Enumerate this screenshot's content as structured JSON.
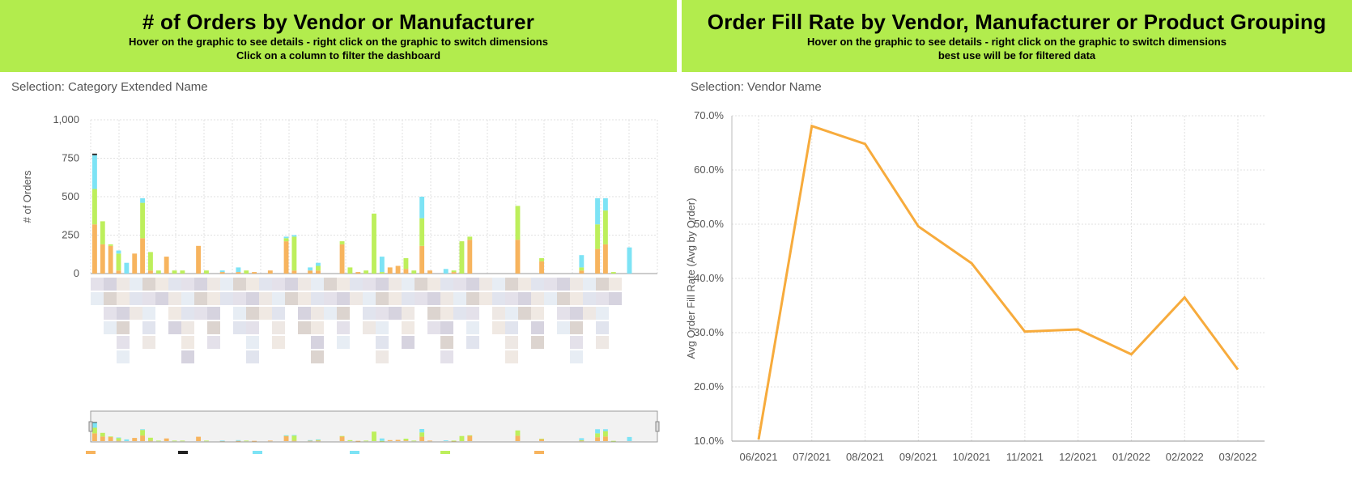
{
  "left_panel": {
    "title": "# of Orders by Vendor or Manufacturer",
    "subtitle1": "Hover on the graphic to see details - right click on the graphic to switch dimensions",
    "subtitle2": "Click on a column to filter the dashboard",
    "selection_text": "Selection: Category Extended Name"
  },
  "right_panel": {
    "title": "Order Fill Rate by Vendor, Manufacturer or Product Grouping",
    "subtitle1": "Hover on the graphic to see details - right click on the graphic to switch dimensions",
    "subtitle2": "best use will be for filtered data",
    "selection_text": "Selection: Vendor Name"
  },
  "colors": {
    "orange": "#f7b45e",
    "green": "#bdef5c",
    "cyan": "#7de3f5",
    "black": "#222222",
    "line": "#f7ab3c",
    "banner": "#b2ec4d"
  },
  "chart_data": [
    {
      "type": "bar",
      "stacked": true,
      "title": "# of Orders by Vendor or Manufacturer",
      "ylabel": "# of Orders",
      "ylim": [
        0,
        1000
      ],
      "yticks": [
        0,
        250,
        500,
        750,
        1000
      ],
      "ytick_labels": [
        "0",
        "250",
        "500",
        "750",
        "1,000"
      ],
      "series": [
        {
          "name": "Orange",
          "color": "#f7b45e",
          "values": [
            320,
            190,
            180,
            20,
            0,
            130,
            230,
            20,
            0,
            110,
            0,
            0,
            0,
            180,
            0,
            0,
            10,
            0,
            10,
            0,
            10,
            0,
            20,
            0,
            210,
            20,
            0,
            20,
            20,
            0,
            0,
            190,
            0,
            10,
            0,
            0,
            0,
            40,
            50,
            30,
            0,
            180,
            20,
            0,
            0,
            10,
            0,
            220,
            0,
            0,
            0,
            0,
            0,
            220,
            0,
            0,
            80,
            0,
            0,
            0,
            0,
            20,
            0,
            160,
            190,
            0,
            0,
            0,
            0,
            0,
            0
          ]
        },
        {
          "name": "Green",
          "color": "#bdef5c",
          "values": [
            230,
            150,
            10,
            110,
            0,
            0,
            230,
            120,
            20,
            0,
            20,
            20,
            0,
            0,
            20,
            0,
            0,
            0,
            0,
            20,
            0,
            0,
            0,
            0,
            20,
            220,
            0,
            0,
            30,
            0,
            0,
            20,
            40,
            0,
            20,
            390,
            10,
            0,
            0,
            70,
            20,
            180,
            0,
            0,
            0,
            10,
            210,
            20,
            0,
            0,
            0,
            0,
            0,
            220,
            0,
            0,
            20,
            0,
            0,
            0,
            0,
            20,
            0,
            160,
            220,
            10,
            0,
            0,
            0,
            0,
            0
          ]
        },
        {
          "name": "Cyan",
          "color": "#7de3f5",
          "values": [
            220,
            0,
            0,
            20,
            70,
            0,
            30,
            0,
            0,
            0,
            0,
            0,
            0,
            0,
            0,
            0,
            10,
            0,
            30,
            0,
            0,
            0,
            0,
            0,
            10,
            10,
            0,
            20,
            20,
            0,
            0,
            0,
            0,
            0,
            0,
            0,
            100,
            0,
            0,
            0,
            0,
            140,
            0,
            0,
            30,
            0,
            0,
            0,
            0,
            0,
            0,
            0,
            0,
            0,
            0,
            0,
            0,
            0,
            0,
            0,
            0,
            80,
            0,
            170,
            80,
            0,
            0,
            170,
            0,
            0,
            0
          ]
        },
        {
          "name": "Black",
          "color": "#222222",
          "values": [
            10,
            0,
            0,
            0,
            0,
            0,
            0,
            0,
            0,
            0,
            0,
            0,
            0,
            0,
            0,
            0,
            0,
            0,
            0,
            0,
            0,
            0,
            0,
            0,
            0,
            0,
            0,
            0,
            0,
            0,
            0,
            0,
            0,
            0,
            0,
            0,
            0,
            0,
            0,
            0,
            0,
            0,
            0,
            0,
            0,
            0,
            0,
            0,
            0,
            0,
            0,
            0,
            0,
            0,
            0,
            0,
            0,
            0,
            0,
            0,
            0,
            0,
            0,
            0,
            0,
            0,
            0,
            0,
            0,
            0,
            0
          ]
        }
      ]
    },
    {
      "type": "line",
      "title": "Order Fill Rate by Vendor, Manufacturer or Product Grouping",
      "ylabel": "Avg Order Fill Rate (Avg by Order)",
      "categories": [
        "06/2021",
        "07/2021",
        "08/2021",
        "09/2021",
        "10/2021",
        "11/2021",
        "12/2021",
        "01/2022",
        "02/2022",
        "03/2022"
      ],
      "values": [
        10.3,
        68.1,
        64.8,
        49.6,
        42.8,
        30.2,
        30.6,
        26.0,
        36.5,
        23.2
      ],
      "ylim": [
        10,
        70
      ],
      "yticks": [
        10,
        20,
        30,
        40,
        50,
        60,
        70
      ],
      "ytick_labels": [
        "10.0%",
        "20.0%",
        "30.0%",
        "40.0%",
        "50.0%",
        "60.0%",
        "70.0%"
      ]
    }
  ]
}
